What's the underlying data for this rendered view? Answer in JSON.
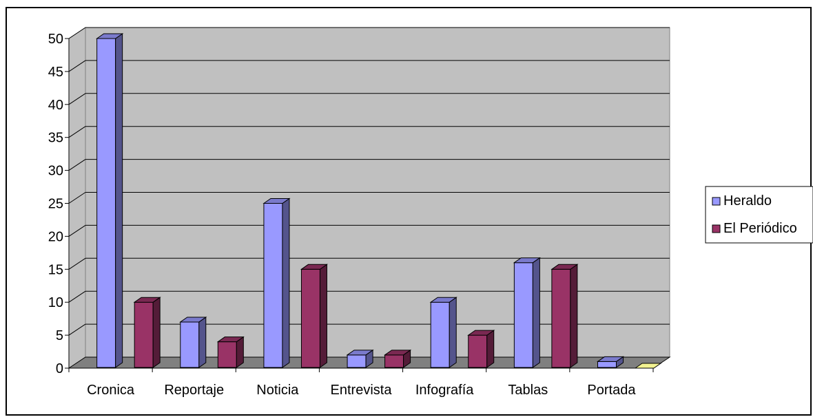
{
  "chart_data": {
    "type": "bar",
    "title": "",
    "xlabel": "",
    "ylabel": "",
    "categories": [
      "Cronica",
      "Reportaje",
      "Noticia",
      "Entrevista",
      "Infografía",
      "Tablas",
      "Portada"
    ],
    "series": [
      {
        "name": "Heraldo",
        "values": [
          50,
          7,
          25,
          2,
          10,
          16,
          1
        ],
        "color": "#9999ff"
      },
      {
        "name": "El Periódico",
        "values": [
          10,
          4,
          15,
          2,
          5,
          15,
          0
        ],
        "color": "#993366"
      }
    ],
    "ylim": [
      0,
      50
    ],
    "yticks": [
      0,
      5,
      10,
      15,
      20,
      25,
      30,
      35,
      40,
      45,
      50
    ],
    "grid": true,
    "legend_position": "right",
    "style": "3d-column",
    "colors": {
      "plot_wall": "#c0c0c0",
      "floor": "#808080",
      "gridline": "#000000",
      "empty_bar": "#ffff99"
    }
  }
}
